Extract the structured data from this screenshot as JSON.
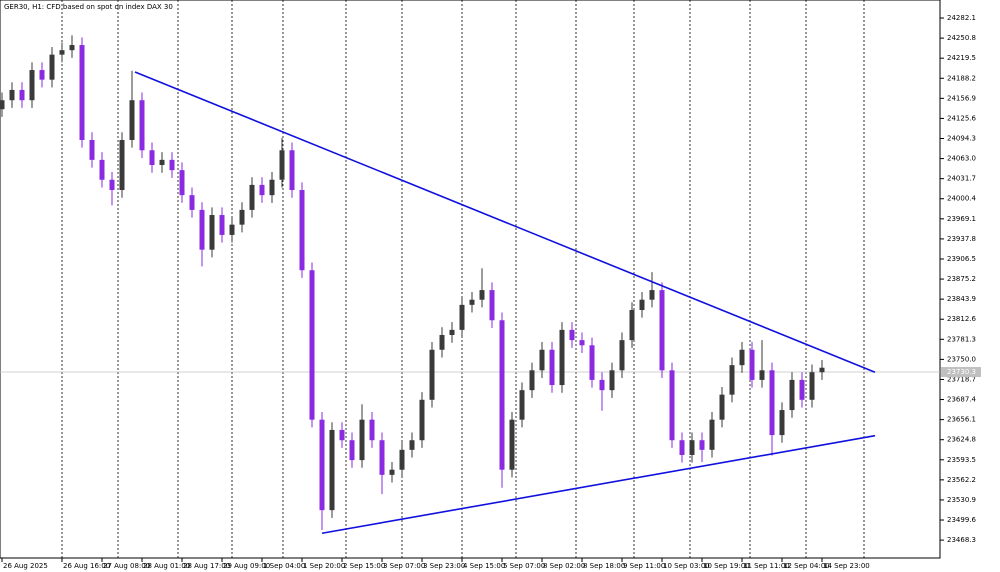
{
  "chart_data": {
    "type": "candlestick",
    "title": "GER30, H1:  CFD based on spot on index DAX 30",
    "categories": [
      "26 Aug 2025",
      null,
      null,
      null,
      null,
      null,
      "26 Aug 16:00",
      null,
      null,
      null,
      "27 Aug 08:00",
      null,
      null,
      null,
      "28 Aug 01:00",
      null,
      null,
      null,
      "28 Aug 17:00",
      null,
      null,
      null,
      "29 Aug 09:00",
      null,
      null,
      null,
      "1 Sep 04:00",
      null,
      null,
      null,
      "1 Sep 20:00",
      null,
      null,
      null,
      "2 Sep 15:00",
      null,
      null,
      null,
      "3 Sep 07:00",
      null,
      null,
      null,
      "3 Sep 23:00",
      null,
      null,
      null,
      "4 Sep 15:00",
      null,
      null,
      null,
      "5 Sep 07:00",
      null,
      null,
      null,
      "8 Sep 02:00",
      null,
      null,
      null,
      "8 Sep 18:00",
      null,
      null,
      null,
      "9 Sep 11:00",
      null,
      null,
      null,
      "10 Sep 03:00",
      null,
      null,
      null,
      "10 Sep 19:00",
      null,
      null,
      null,
      "11 Sep 11:00",
      null,
      null,
      null,
      "12 Sep 04:00",
      null,
      null,
      null,
      "14 Sep 23:00"
    ],
    "open": [
      24140,
      24154,
      24170,
      24154,
      24201,
      24186,
      24225,
      24232,
      24240,
      24092,
      24061,
      24030,
      24014,
      24092,
      24154,
      24076,
      24053,
      24061,
      24045,
      24006,
      23983,
      23921,
      23975,
      23944,
      23960,
      23983,
      24022,
      24006,
      24030,
      24076,
      24014,
      23889,
      23656,
      23515,
      23640,
      23624,
      23593,
      23656,
      23624,
      23570,
      23578,
      23609,
      23624,
      23687,
      23765,
      23788,
      23796,
      23835,
      23843,
      23858,
      23811,
      23578,
      23656,
      23702,
      23733,
      23765,
      23710,
      23796,
      23780,
      23772,
      23718,
      23702,
      23733,
      23780,
      23827,
      23843,
      23858,
      23733,
      23624,
      23601,
      23624,
      23609,
      23656,
      23695,
      23741,
      23765,
      23718,
      23733,
      23632,
      23671,
      23718,
      23687,
      23730
    ],
    "high": [
      24166,
      24182,
      24182,
      24213,
      24213,
      24237,
      24244,
      24255,
      24252,
      24104,
      24073,
      24042,
      24104,
      24200,
      24166,
      24088,
      24073,
      24073,
      24057,
      24018,
      23995,
      23987,
      23987,
      23972,
      23995,
      24034,
      24034,
      24042,
      24095,
      24088,
      24026,
      23901,
      23668,
      23652,
      23652,
      23636,
      23680,
      23668,
      23636,
      23590,
      23621,
      23636,
      23699,
      23777,
      23800,
      23808,
      23847,
      23855,
      23892,
      23870,
      23823,
      23668,
      23714,
      23745,
      23777,
      23777,
      23808,
      23808,
      23792,
      23784,
      23730,
      23745,
      23792,
      23839,
      23855,
      23886,
      23870,
      23745,
      23636,
      23636,
      23636,
      23668,
      23707,
      23753,
      23777,
      23777,
      23780,
      23745,
      23683,
      23730,
      23730,
      23742,
      23749
    ],
    "low": [
      24128,
      24142,
      24142,
      24142,
      24174,
      24174,
      24213,
      24220,
      24080,
      24049,
      24018,
      23990,
      24002,
      24080,
      24064,
      24041,
      24041,
      24033,
      23994,
      23971,
      23895,
      23909,
      23932,
      23932,
      23948,
      23971,
      23994,
      23994,
      24018,
      24002,
      23877,
      23644,
      23484,
      23503,
      23612,
      23581,
      23581,
      23612,
      23540,
      23558,
      23566,
      23597,
      23612,
      23675,
      23753,
      23776,
      23784,
      23823,
      23831,
      23799,
      23550,
      23566,
      23644,
      23690,
      23721,
      23698,
      23698,
      23768,
      23760,
      23706,
      23670,
      23690,
      23721,
      23768,
      23815,
      23831,
      23721,
      23612,
      23589,
      23589,
      23590,
      23597,
      23644,
      23683,
      23729,
      23706,
      23706,
      23600,
      23620,
      23659,
      23675,
      23675,
      23718
    ],
    "close": [
      24154,
      24170,
      24154,
      24201,
      24186,
      24225,
      24232,
      24240,
      24092,
      24061,
      24030,
      24014,
      24092,
      24154,
      24076,
      24053,
      24061,
      24045,
      24006,
      23983,
      23921,
      23975,
      23944,
      23960,
      23983,
      24022,
      24006,
      24030,
      24076,
      24014,
      23889,
      23656,
      23515,
      23640,
      23624,
      23593,
      23656,
      23624,
      23570,
      23578,
      23609,
      23624,
      23687,
      23765,
      23788,
      23796,
      23835,
      23843,
      23858,
      23811,
      23578,
      23656,
      23702,
      23733,
      23765,
      23710,
      23796,
      23780,
      23772,
      23718,
      23702,
      23733,
      23780,
      23827,
      23843,
      23858,
      23733,
      23624,
      23601,
      23624,
      23609,
      23656,
      23695,
      23741,
      23765,
      23718,
      23733,
      23632,
      23671,
      23718,
      23687,
      23730,
      23737
    ],
    "up_color": "#3a3a3a",
    "down_color": "#8a2be2",
    "xlim": [
      -0.2,
      93.8
    ],
    "ylim": [
      23440.4,
      24310.2
    ],
    "yticks": [
      24282.1,
      24250.8,
      24219.5,
      24188.2,
      24156.9,
      24125.6,
      24094.3,
      {
        "value": 24063,
        "label": "24063.0"
      },
      24031.7,
      24000.4,
      23969.1,
      23937.8,
      23906.5,
      23875.2,
      23843.9,
      23812.6,
      23781.3,
      {
        "value": 23750,
        "label": "23750.0"
      },
      23718.7,
      23687.4,
      23656.1,
      23624.8,
      23593.5,
      23562.2,
      23530.9,
      23499.6,
      23468.3
    ],
    "last_price": 23730.3,
    "trendlines": [
      {
        "color": "#1010e0",
        "x": [
          13.3,
          87.3
        ],
        "y": [
          24198,
          23730
        ]
      },
      {
        "color": "#1010e0",
        "x": [
          32,
          87.3
        ],
        "y": [
          23479,
          23631
        ]
      }
    ]
  }
}
